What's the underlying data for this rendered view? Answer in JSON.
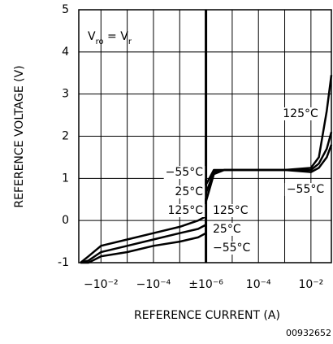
{
  "chart_data": {
    "type": "line",
    "xlabel": "REFERENCE CURRENT (A)",
    "ylabel": "REFERENCE VOLTAGE (V)",
    "equation": [
      "V",
      "ro",
      " = V",
      "r"
    ],
    "footnote": "00932652",
    "xscale": "symlog",
    "linthresh": 1e-06,
    "xlim": [
      -0.07,
      0.06
    ],
    "xticks": [
      {
        "value": -0.01,
        "label": "−10⁻²"
      },
      {
        "value": -0.0001,
        "label": "−10⁻⁴"
      },
      {
        "value": 1e-06,
        "label": "±10⁻⁶"
      },
      {
        "value": 0.0001,
        "label": "10⁻⁴"
      },
      {
        "value": 0.01,
        "label": "10⁻²"
      }
    ],
    "xminor_grid": [
      -0.001,
      -1e-05,
      1e-05,
      0.001
    ],
    "ylim": [
      -1,
      5
    ],
    "yticks": [
      -1,
      0,
      1,
      2,
      3,
      4,
      5
    ],
    "grid": true,
    "x": [
      -0.06,
      -0.03,
      -0.01,
      -0.001,
      -0.0001,
      -1e-05,
      -2e-06,
      -1e-06,
      1e-06,
      2e-06,
      5e-06,
      0.0001,
      0.001,
      0.01,
      0.02,
      0.04,
      0.06
    ],
    "series": [
      {
        "name": "125°C",
        "color": "#000000",
        "values": [
          -1.0,
          -0.85,
          -0.6,
          -0.45,
          -0.3,
          -0.15,
          0.0,
          0.1,
          0.45,
          1.1,
          1.2,
          1.2,
          1.2,
          1.25,
          1.5,
          2.6,
          3.45
        ]
      },
      {
        "name": "25°C",
        "color": "#000000",
        "values": [
          -1.0,
          -0.95,
          -0.75,
          -0.6,
          -0.45,
          -0.3,
          -0.2,
          -0.1,
          0.65,
          1.15,
          1.2,
          1.2,
          1.2,
          1.2,
          1.35,
          1.7,
          2.1
        ]
      },
      {
        "name": "−55°C",
        "color": "#000000",
        "values": [
          -1.0,
          -1.0,
          -0.85,
          -0.75,
          -0.6,
          -0.5,
          -0.4,
          -0.3,
          0.85,
          1.2,
          1.2,
          1.2,
          1.2,
          1.15,
          1.25,
          1.5,
          1.8
        ]
      }
    ],
    "annotations": [
      "125°C",
      "−55°C",
      "125°C",
      "25°C",
      "−55°C"
    ]
  }
}
